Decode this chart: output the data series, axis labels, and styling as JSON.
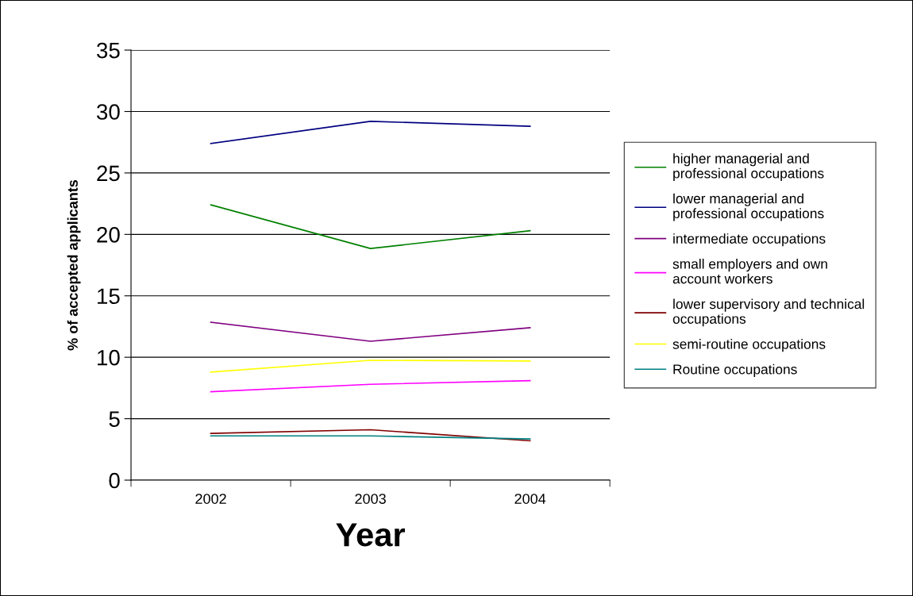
{
  "chart_data": {
    "type": "line",
    "xlabel": "Year",
    "ylabel": "% of accepted applicants",
    "categories": [
      "2002",
      "2003",
      "2004"
    ],
    "series": [
      {
        "name": "higher managerial and professional occupations",
        "color": "#008000",
        "values": [
          22.4,
          18.85,
          20.3
        ]
      },
      {
        "name": "lower managerial and professional occupations",
        "color": "#000080",
        "values": [
          27.4,
          29.2,
          28.8
        ]
      },
      {
        "name": "intermediate occupations",
        "color": "#800080",
        "values": [
          12.85,
          11.3,
          12.4
        ]
      },
      {
        "name": "small employers and own account workers",
        "color": "#ff00ff",
        "values": [
          7.2,
          7.8,
          8.1
        ]
      },
      {
        "name": "lower supervisory and technical occupations",
        "color": "#800000",
        "values": [
          3.8,
          4.1,
          3.2
        ]
      },
      {
        "name": "semi-routine occupations",
        "color": "#ffff00",
        "values": [
          8.8,
          9.75,
          9.7
        ]
      },
      {
        "name": "Routine occupations",
        "color": "#008080",
        "values": [
          3.6,
          3.6,
          3.35
        ]
      }
    ],
    "ylim": [
      0,
      35
    ],
    "yticks": [
      0,
      5,
      10,
      15,
      20,
      25,
      30,
      35
    ],
    "grid": "y",
    "legend": "right",
    "marker": "none",
    "line_style": "solid"
  }
}
